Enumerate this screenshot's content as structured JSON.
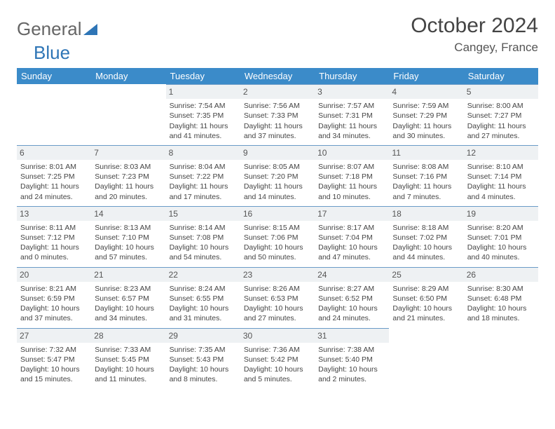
{
  "logo": {
    "part1": "General",
    "part2": "Blue"
  },
  "title": "October 2024",
  "location": "Cangey, France",
  "header_bg": "#3b8bc9",
  "rule_color": "#6a9bc7",
  "daynum_bg": "#eef1f3",
  "text_color": "#444444",
  "day_names": [
    "Sunday",
    "Monday",
    "Tuesday",
    "Wednesday",
    "Thursday",
    "Friday",
    "Saturday"
  ],
  "weeks": [
    [
      {
        "n": "",
        "sr": "",
        "ss": "",
        "dl": ""
      },
      {
        "n": "",
        "sr": "",
        "ss": "",
        "dl": ""
      },
      {
        "n": "1",
        "sr": "Sunrise: 7:54 AM",
        "ss": "Sunset: 7:35 PM",
        "dl": "Daylight: 11 hours and 41 minutes."
      },
      {
        "n": "2",
        "sr": "Sunrise: 7:56 AM",
        "ss": "Sunset: 7:33 PM",
        "dl": "Daylight: 11 hours and 37 minutes."
      },
      {
        "n": "3",
        "sr": "Sunrise: 7:57 AM",
        "ss": "Sunset: 7:31 PM",
        "dl": "Daylight: 11 hours and 34 minutes."
      },
      {
        "n": "4",
        "sr": "Sunrise: 7:59 AM",
        "ss": "Sunset: 7:29 PM",
        "dl": "Daylight: 11 hours and 30 minutes."
      },
      {
        "n": "5",
        "sr": "Sunrise: 8:00 AM",
        "ss": "Sunset: 7:27 PM",
        "dl": "Daylight: 11 hours and 27 minutes."
      }
    ],
    [
      {
        "n": "6",
        "sr": "Sunrise: 8:01 AM",
        "ss": "Sunset: 7:25 PM",
        "dl": "Daylight: 11 hours and 24 minutes."
      },
      {
        "n": "7",
        "sr": "Sunrise: 8:03 AM",
        "ss": "Sunset: 7:23 PM",
        "dl": "Daylight: 11 hours and 20 minutes."
      },
      {
        "n": "8",
        "sr": "Sunrise: 8:04 AM",
        "ss": "Sunset: 7:22 PM",
        "dl": "Daylight: 11 hours and 17 minutes."
      },
      {
        "n": "9",
        "sr": "Sunrise: 8:05 AM",
        "ss": "Sunset: 7:20 PM",
        "dl": "Daylight: 11 hours and 14 minutes."
      },
      {
        "n": "10",
        "sr": "Sunrise: 8:07 AM",
        "ss": "Sunset: 7:18 PM",
        "dl": "Daylight: 11 hours and 10 minutes."
      },
      {
        "n": "11",
        "sr": "Sunrise: 8:08 AM",
        "ss": "Sunset: 7:16 PM",
        "dl": "Daylight: 11 hours and 7 minutes."
      },
      {
        "n": "12",
        "sr": "Sunrise: 8:10 AM",
        "ss": "Sunset: 7:14 PM",
        "dl": "Daylight: 11 hours and 4 minutes."
      }
    ],
    [
      {
        "n": "13",
        "sr": "Sunrise: 8:11 AM",
        "ss": "Sunset: 7:12 PM",
        "dl": "Daylight: 11 hours and 0 minutes."
      },
      {
        "n": "14",
        "sr": "Sunrise: 8:13 AM",
        "ss": "Sunset: 7:10 PM",
        "dl": "Daylight: 10 hours and 57 minutes."
      },
      {
        "n": "15",
        "sr": "Sunrise: 8:14 AM",
        "ss": "Sunset: 7:08 PM",
        "dl": "Daylight: 10 hours and 54 minutes."
      },
      {
        "n": "16",
        "sr": "Sunrise: 8:15 AM",
        "ss": "Sunset: 7:06 PM",
        "dl": "Daylight: 10 hours and 50 minutes."
      },
      {
        "n": "17",
        "sr": "Sunrise: 8:17 AM",
        "ss": "Sunset: 7:04 PM",
        "dl": "Daylight: 10 hours and 47 minutes."
      },
      {
        "n": "18",
        "sr": "Sunrise: 8:18 AM",
        "ss": "Sunset: 7:02 PM",
        "dl": "Daylight: 10 hours and 44 minutes."
      },
      {
        "n": "19",
        "sr": "Sunrise: 8:20 AM",
        "ss": "Sunset: 7:01 PM",
        "dl": "Daylight: 10 hours and 40 minutes."
      }
    ],
    [
      {
        "n": "20",
        "sr": "Sunrise: 8:21 AM",
        "ss": "Sunset: 6:59 PM",
        "dl": "Daylight: 10 hours and 37 minutes."
      },
      {
        "n": "21",
        "sr": "Sunrise: 8:23 AM",
        "ss": "Sunset: 6:57 PM",
        "dl": "Daylight: 10 hours and 34 minutes."
      },
      {
        "n": "22",
        "sr": "Sunrise: 8:24 AM",
        "ss": "Sunset: 6:55 PM",
        "dl": "Daylight: 10 hours and 31 minutes."
      },
      {
        "n": "23",
        "sr": "Sunrise: 8:26 AM",
        "ss": "Sunset: 6:53 PM",
        "dl": "Daylight: 10 hours and 27 minutes."
      },
      {
        "n": "24",
        "sr": "Sunrise: 8:27 AM",
        "ss": "Sunset: 6:52 PM",
        "dl": "Daylight: 10 hours and 24 minutes."
      },
      {
        "n": "25",
        "sr": "Sunrise: 8:29 AM",
        "ss": "Sunset: 6:50 PM",
        "dl": "Daylight: 10 hours and 21 minutes."
      },
      {
        "n": "26",
        "sr": "Sunrise: 8:30 AM",
        "ss": "Sunset: 6:48 PM",
        "dl": "Daylight: 10 hours and 18 minutes."
      }
    ],
    [
      {
        "n": "27",
        "sr": "Sunrise: 7:32 AM",
        "ss": "Sunset: 5:47 PM",
        "dl": "Daylight: 10 hours and 15 minutes."
      },
      {
        "n": "28",
        "sr": "Sunrise: 7:33 AM",
        "ss": "Sunset: 5:45 PM",
        "dl": "Daylight: 10 hours and 11 minutes."
      },
      {
        "n": "29",
        "sr": "Sunrise: 7:35 AM",
        "ss": "Sunset: 5:43 PM",
        "dl": "Daylight: 10 hours and 8 minutes."
      },
      {
        "n": "30",
        "sr": "Sunrise: 7:36 AM",
        "ss": "Sunset: 5:42 PM",
        "dl": "Daylight: 10 hours and 5 minutes."
      },
      {
        "n": "31",
        "sr": "Sunrise: 7:38 AM",
        "ss": "Sunset: 5:40 PM",
        "dl": "Daylight: 10 hours and 2 minutes."
      },
      {
        "n": "",
        "sr": "",
        "ss": "",
        "dl": ""
      },
      {
        "n": "",
        "sr": "",
        "ss": "",
        "dl": ""
      }
    ]
  ]
}
